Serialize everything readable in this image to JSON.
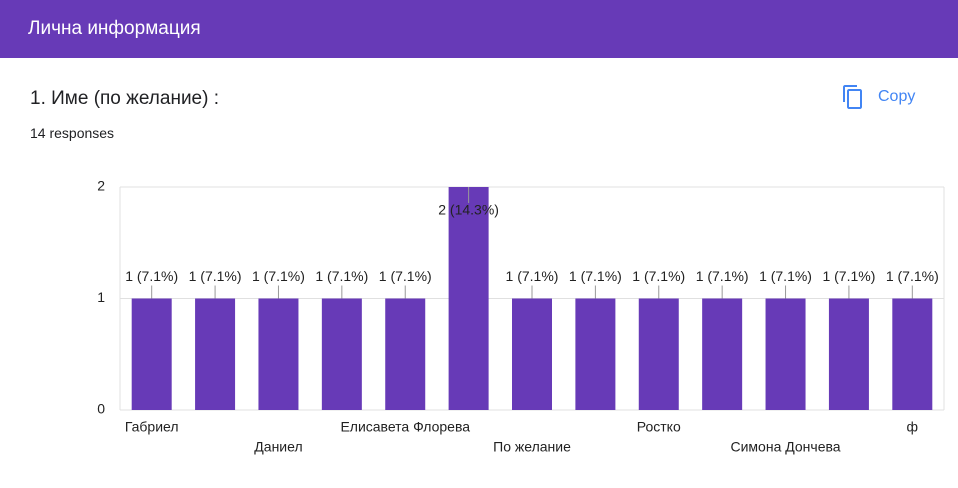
{
  "header": {
    "title": "Лична информация"
  },
  "question": {
    "title": "1. Име (по желание) :",
    "responses": "14 responses",
    "copy": "Copy"
  },
  "chart_data": {
    "type": "bar",
    "categories": [
      "Габриел",
      null,
      "Даниел",
      null,
      "Елисавета Флорева",
      null,
      "По желание",
      null,
      "Ростко",
      null,
      "Симона Дончева",
      null,
      "ф"
    ],
    "values": [
      1,
      1,
      1,
      1,
      1,
      2,
      1,
      1,
      1,
      1,
      1,
      1,
      1
    ],
    "value_labels": [
      "1 (7.1%)",
      "1 (7.1%)",
      "1 (7.1%)",
      "1 (7.1%)",
      "1 (7.1%)",
      "2 (14.3%)",
      "1 (7.1%)",
      "1 (7.1%)",
      "1 (7.1%)",
      "1 (7.1%)",
      "1 (7.1%)",
      "1 (7.1%)",
      "1 (7.1%)"
    ],
    "color": "#673ab7",
    "ylim": [
      0,
      2
    ],
    "yticks": [
      0,
      1,
      2
    ],
    "grid": true
  }
}
